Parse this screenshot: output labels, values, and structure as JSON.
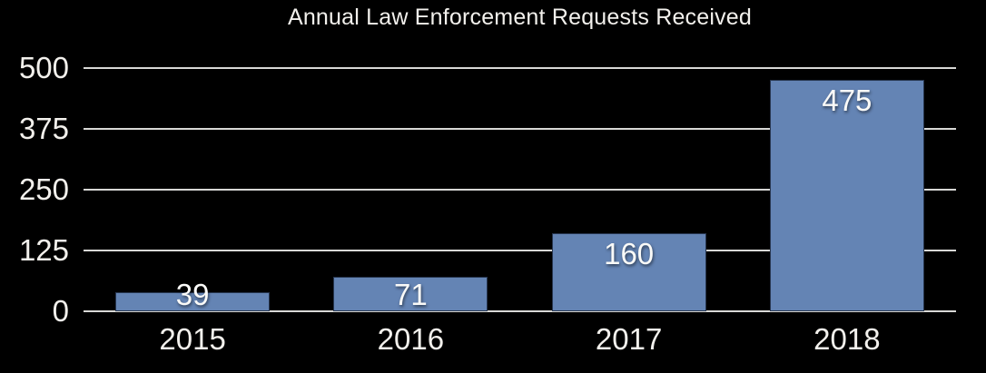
{
  "chart_data": {
    "type": "bar",
    "title": "Annual Law Enforcement Requests Received",
    "categories": [
      "2015",
      "2016",
      "2017",
      "2018"
    ],
    "values": [
      39,
      71,
      160,
      475
    ],
    "yticks": [
      0,
      125,
      250,
      375,
      500
    ],
    "ylim": [
      0,
      500
    ],
    "xlabel": "",
    "ylabel": "",
    "grid": true,
    "legend": false,
    "colors": {
      "background": "#000000",
      "bar_fill": "#6484b4",
      "bar_border": "#27364f",
      "gridline": "#d8d8d6",
      "text": "#f2f0ec",
      "value_label": "#fafaf8"
    }
  }
}
